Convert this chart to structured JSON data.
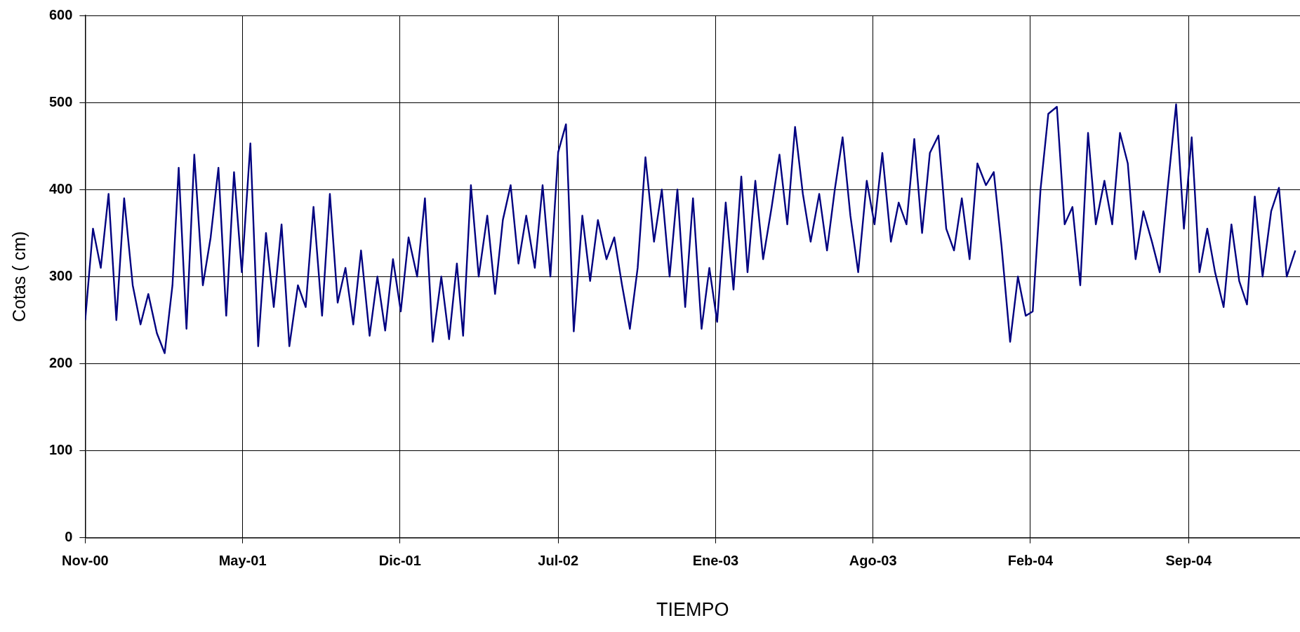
{
  "chart_data": {
    "type": "line",
    "xlabel": "TIEMPO",
    "ylabel": "Cotas ( cm)",
    "xlim": [
      "2000-11-01",
      "2005-02-07"
    ],
    "xticks": [
      {
        "value": "2000-11-01",
        "label": "Nov-00"
      },
      {
        "value": "2001-05-22",
        "label": "May-01"
      },
      {
        "value": "2001-12-10",
        "label": "Dic-01"
      },
      {
        "value": "2002-07-01",
        "label": "Jul-02"
      },
      {
        "value": "2003-01-19",
        "label": "Ene-03"
      },
      {
        "value": "2003-08-09",
        "label": "Ago-03"
      },
      {
        "value": "2004-02-27",
        "label": "Feb-04"
      },
      {
        "value": "2004-09-17",
        "label": "Sep-04"
      }
    ],
    "ylim": [
      0,
      600
    ],
    "yticks": [
      0,
      100,
      200,
      300,
      400,
      500,
      600
    ],
    "grid": true,
    "marker": "none",
    "line_style": "solid",
    "series": [
      {
        "color": "#000080",
        "x": [
          "2000-11-01",
          "2000-11-11",
          "2000-11-21",
          "2000-12-01",
          "2000-12-11",
          "2000-12-21",
          "2001-01-01",
          "2001-01-11",
          "2001-01-21",
          "2001-02-01",
          "2001-02-11",
          "2001-02-21",
          "2001-03-01",
          "2001-03-11",
          "2001-03-21",
          "2001-04-01",
          "2001-04-11",
          "2001-04-21",
          "2001-05-01",
          "2001-05-11",
          "2001-05-21",
          "2001-06-01",
          "2001-06-11",
          "2001-06-21",
          "2001-07-01",
          "2001-07-11",
          "2001-07-21",
          "2001-08-01",
          "2001-08-11",
          "2001-08-21",
          "2001-09-01",
          "2001-09-11",
          "2001-09-21",
          "2001-10-01",
          "2001-10-11",
          "2001-10-21",
          "2001-11-01",
          "2001-11-11",
          "2001-11-21",
          "2001-12-01",
          "2001-12-11",
          "2001-12-21",
          "2002-01-01",
          "2002-01-11",
          "2002-01-21",
          "2002-02-01",
          "2002-02-11",
          "2002-02-21",
          "2002-03-01",
          "2002-03-11",
          "2002-03-21",
          "2002-04-01",
          "2002-04-11",
          "2002-04-21",
          "2002-05-01",
          "2002-05-11",
          "2002-05-21",
          "2002-06-01",
          "2002-06-11",
          "2002-06-21",
          "2002-07-01",
          "2002-07-11",
          "2002-07-21",
          "2002-08-01",
          "2002-08-11",
          "2002-08-21",
          "2002-09-01",
          "2002-09-11",
          "2002-09-21",
          "2002-10-01",
          "2002-10-11",
          "2002-10-21",
          "2002-11-01",
          "2002-11-11",
          "2002-11-21",
          "2002-12-01",
          "2002-12-11",
          "2002-12-21",
          "2003-01-01",
          "2003-01-11",
          "2003-01-21",
          "2003-02-01",
          "2003-02-11",
          "2003-02-21",
          "2003-03-01",
          "2003-03-11",
          "2003-03-21",
          "2003-04-01",
          "2003-04-11",
          "2003-04-21",
          "2003-05-01",
          "2003-05-11",
          "2003-05-21",
          "2003-06-01",
          "2003-06-11",
          "2003-06-21",
          "2003-07-01",
          "2003-07-11",
          "2003-07-21",
          "2003-08-01",
          "2003-08-11",
          "2003-08-21",
          "2003-09-01",
          "2003-09-11",
          "2003-09-21",
          "2003-10-01",
          "2003-10-11",
          "2003-10-21",
          "2003-11-01",
          "2003-11-11",
          "2003-11-21",
          "2003-12-01",
          "2003-12-11",
          "2003-12-21",
          "2004-01-01",
          "2004-01-11",
          "2004-01-21",
          "2004-02-01",
          "2004-02-11",
          "2004-02-21",
          "2004-03-01",
          "2004-03-11",
          "2004-03-21",
          "2004-04-01",
          "2004-04-11",
          "2004-04-21",
          "2004-05-01",
          "2004-05-11",
          "2004-05-21",
          "2004-06-01",
          "2004-06-11",
          "2004-06-21",
          "2004-07-01",
          "2004-07-11",
          "2004-07-21",
          "2004-08-01",
          "2004-08-11",
          "2004-08-21",
          "2004-09-01",
          "2004-09-11",
          "2004-09-21",
          "2004-10-01",
          "2004-10-11",
          "2004-10-21",
          "2004-11-01",
          "2004-11-11",
          "2004-11-21",
          "2004-12-01",
          "2004-12-11",
          "2004-12-21",
          "2005-01-01",
          "2005-01-11",
          "2005-01-21",
          "2005-02-01"
        ],
        "values": [
          250,
          355,
          310,
          395,
          250,
          390,
          290,
          245,
          280,
          235,
          212,
          290,
          425,
          240,
          440,
          290,
          345,
          425,
          255,
          420,
          305,
          453,
          220,
          350,
          265,
          360,
          220,
          290,
          265,
          380,
          255,
          395,
          270,
          310,
          245,
          330,
          232,
          300,
          238,
          320,
          260,
          345,
          300,
          390,
          225,
          300,
          228,
          315,
          232,
          405,
          300,
          370,
          280,
          365,
          405,
          315,
          370,
          310,
          405,
          300,
          443,
          475,
          237,
          370,
          295,
          365,
          320,
          345,
          290,
          240,
          310,
          437,
          340,
          400,
          300,
          400,
          265,
          390,
          240,
          310,
          248,
          385,
          285,
          415,
          305,
          410,
          320,
          380,
          440,
          360,
          472,
          395,
          340,
          395,
          330,
          400,
          460,
          370,
          305,
          410,
          360,
          442,
          340,
          385,
          360,
          458,
          350,
          442,
          462,
          355,
          330,
          390,
          320,
          430,
          405,
          420,
          335,
          225,
          300,
          255,
          260,
          400,
          487,
          495,
          360,
          380,
          290,
          465,
          360,
          410,
          360,
          465,
          430,
          320,
          375,
          340,
          305,
          400,
          498,
          355,
          460,
          305,
          355,
          305,
          265,
          360,
          295,
          268,
          392,
          300,
          375,
          402,
          300,
          330
        ]
      }
    ]
  }
}
